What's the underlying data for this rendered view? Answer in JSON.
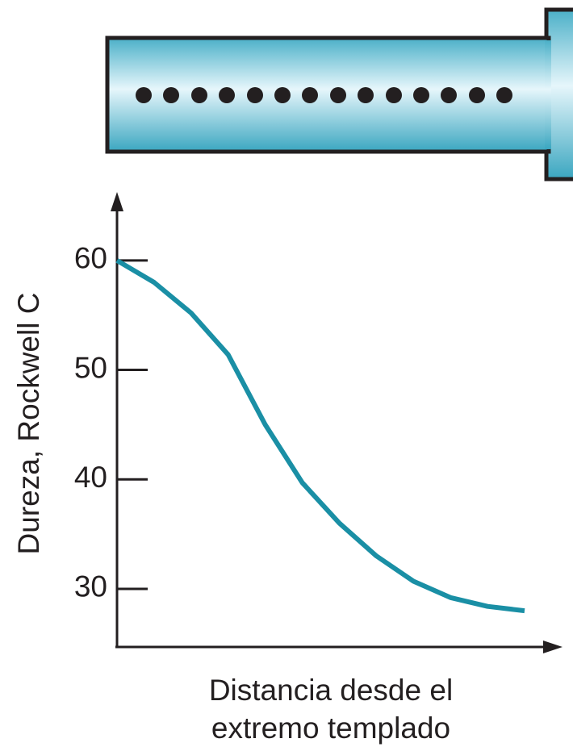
{
  "chart_data": {
    "type": "line",
    "ylabel": "Dureza, Rockwell C",
    "xlabel": [
      "Distancia desde el",
      "extremo templado"
    ],
    "categories": [
      null,
      null,
      null,
      null,
      null,
      null,
      null,
      null,
      null,
      null,
      null,
      null
    ],
    "values": [
      60,
      58.0,
      55.2,
      51.4,
      45.0,
      39.7,
      36.0,
      33.0,
      30.7,
      29.2,
      28.4,
      28.0
    ],
    "color": "#1a8fa5",
    "ylim": [
      25,
      65
    ],
    "yticks": [
      30,
      40,
      50,
      60
    ]
  }
}
